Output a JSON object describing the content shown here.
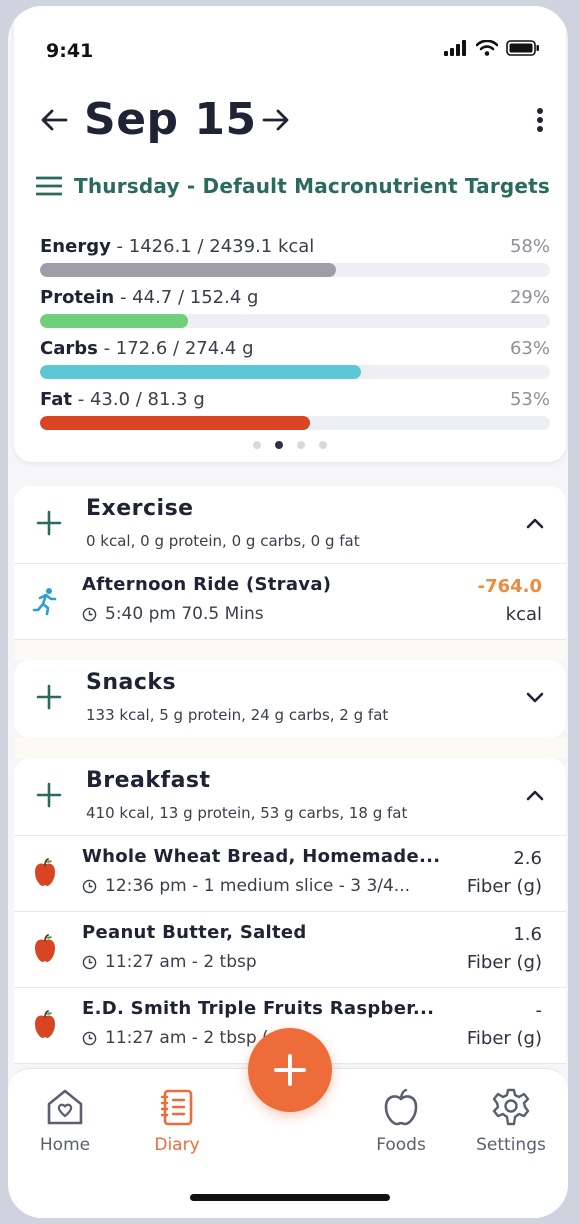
{
  "status_bar": {
    "time": "9:41"
  },
  "header": {
    "date": "Sep 15",
    "targets_label": "Thursday - Default Macronutrient Targets"
  },
  "macros": [
    {
      "name": "Energy",
      "detail": " - 1426.1 / 2439.1 kcal",
      "percent_label": "58%",
      "fill": 0.58,
      "color": "#9e9ea8"
    },
    {
      "name": "Protein",
      "detail": " - 44.7 / 152.4 g",
      "percent_label": "29%",
      "fill": 0.29,
      "color": "#6fcf7b"
    },
    {
      "name": "Carbs",
      "detail": " - 172.6 / 274.4 g",
      "percent_label": "63%",
      "fill": 0.63,
      "color": "#5bc8d4"
    },
    {
      "name": "Fat",
      "detail": " - 43.0 / 81.3 g",
      "percent_label": "53%",
      "fill": 0.53,
      "color": "#d94422"
    }
  ],
  "carousel": {
    "count": 4,
    "active": 1
  },
  "exercise": {
    "title": "Exercise",
    "summary": "0 kcal, 0 g protein, 0 g carbs, 0 g fat",
    "entries": [
      {
        "name": "Afternoon Ride (Strava)",
        "meta": "5:40 pm 70.5 Mins",
        "value": "-764.0",
        "unit": "kcal"
      }
    ]
  },
  "snacks": {
    "title": "Snacks",
    "summary": "133 kcal, 5 g protein, 24 g carbs, 2 g fat"
  },
  "breakfast": {
    "title": "Breakfast",
    "summary": "410 kcal, 13 g protein, 53 g carbs, 18 g fat",
    "entries": [
      {
        "name": "Whole Wheat Bread, Homemade...",
        "meta": "12:36 pm - 1 medium slice - 3 3/4...",
        "value": "2.6",
        "unit": "Fiber (g)"
      },
      {
        "name": "Peanut Butter, Salted",
        "meta": "11:27 am - 2 tbsp",
        "value": "1.6",
        "unit": "Fiber (g)"
      },
      {
        "name": "E.D. Smith Triple Fruits Raspber...",
        "meta": "11:27 am - 2 tbsp (...)",
        "value": "-",
        "unit": "Fiber (g)"
      }
    ]
  },
  "tabs": [
    {
      "label": "Home",
      "icon": "home-heart-icon"
    },
    {
      "label": "Diary",
      "icon": "diary-notebook-icon"
    },
    {
      "label": "Foods",
      "icon": "apple-outline-icon"
    },
    {
      "label": "Settings",
      "icon": "gear-icon"
    }
  ],
  "colors": {
    "accent": "#ee6b3a",
    "teal": "#2a6b5d",
    "exercise_value": "#ee8a3a"
  }
}
